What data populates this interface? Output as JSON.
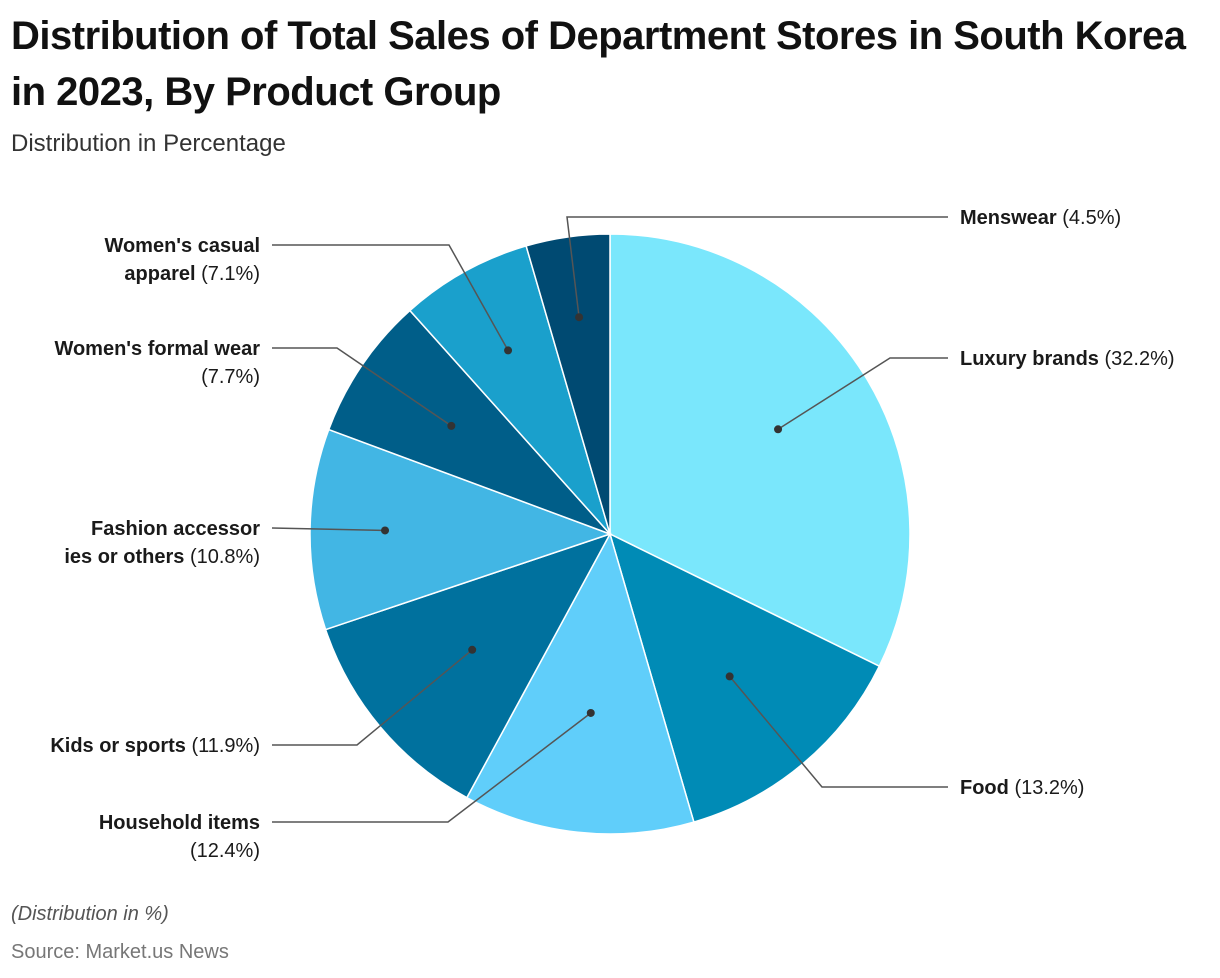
{
  "header": {
    "title": "Distribution of Total Sales of Department Stores in South Korea in 2023, By Product Group",
    "subtitle": "Distribution in Percentage"
  },
  "footer": {
    "note": "(Distribution in %)",
    "source": "Source: Market.us News"
  },
  "chart_data": {
    "type": "pie",
    "title": "Distribution of Total Sales of Department Stores in South Korea in 2023, By Product Group",
    "subtitle": "Distribution in Percentage",
    "unit": "%",
    "start_angle": "12 o'clock, clockwise",
    "slices": [
      {
        "label": "Luxury brands",
        "value": 32.2,
        "display": "(32.2%)",
        "color": "#7ae7fc"
      },
      {
        "label": "Food",
        "value": 13.2,
        "display": "(13.2%)",
        "color": "#008bb6"
      },
      {
        "label": "Household items",
        "value": 12.4,
        "display": "(12.4%)",
        "color": "#60cefa"
      },
      {
        "label": "Kids or sports",
        "value": 11.9,
        "display": "(11.9%)",
        "color": "#00719e"
      },
      {
        "label": "Fashion accessories or others",
        "value": 10.8,
        "display": "(10.8%)",
        "color": "#42b6e4"
      },
      {
        "label": "Women's formal wear",
        "value": 7.7,
        "display": "(7.7%)",
        "color": "#005e89"
      },
      {
        "label": "Women's casual apparel",
        "value": 7.1,
        "display": "(7.1%)",
        "color": "#1aa0cc"
      },
      {
        "label": "Menswear",
        "value": 4.5,
        "display": "(4.5%)",
        "color": "#004a72"
      }
    ]
  }
}
